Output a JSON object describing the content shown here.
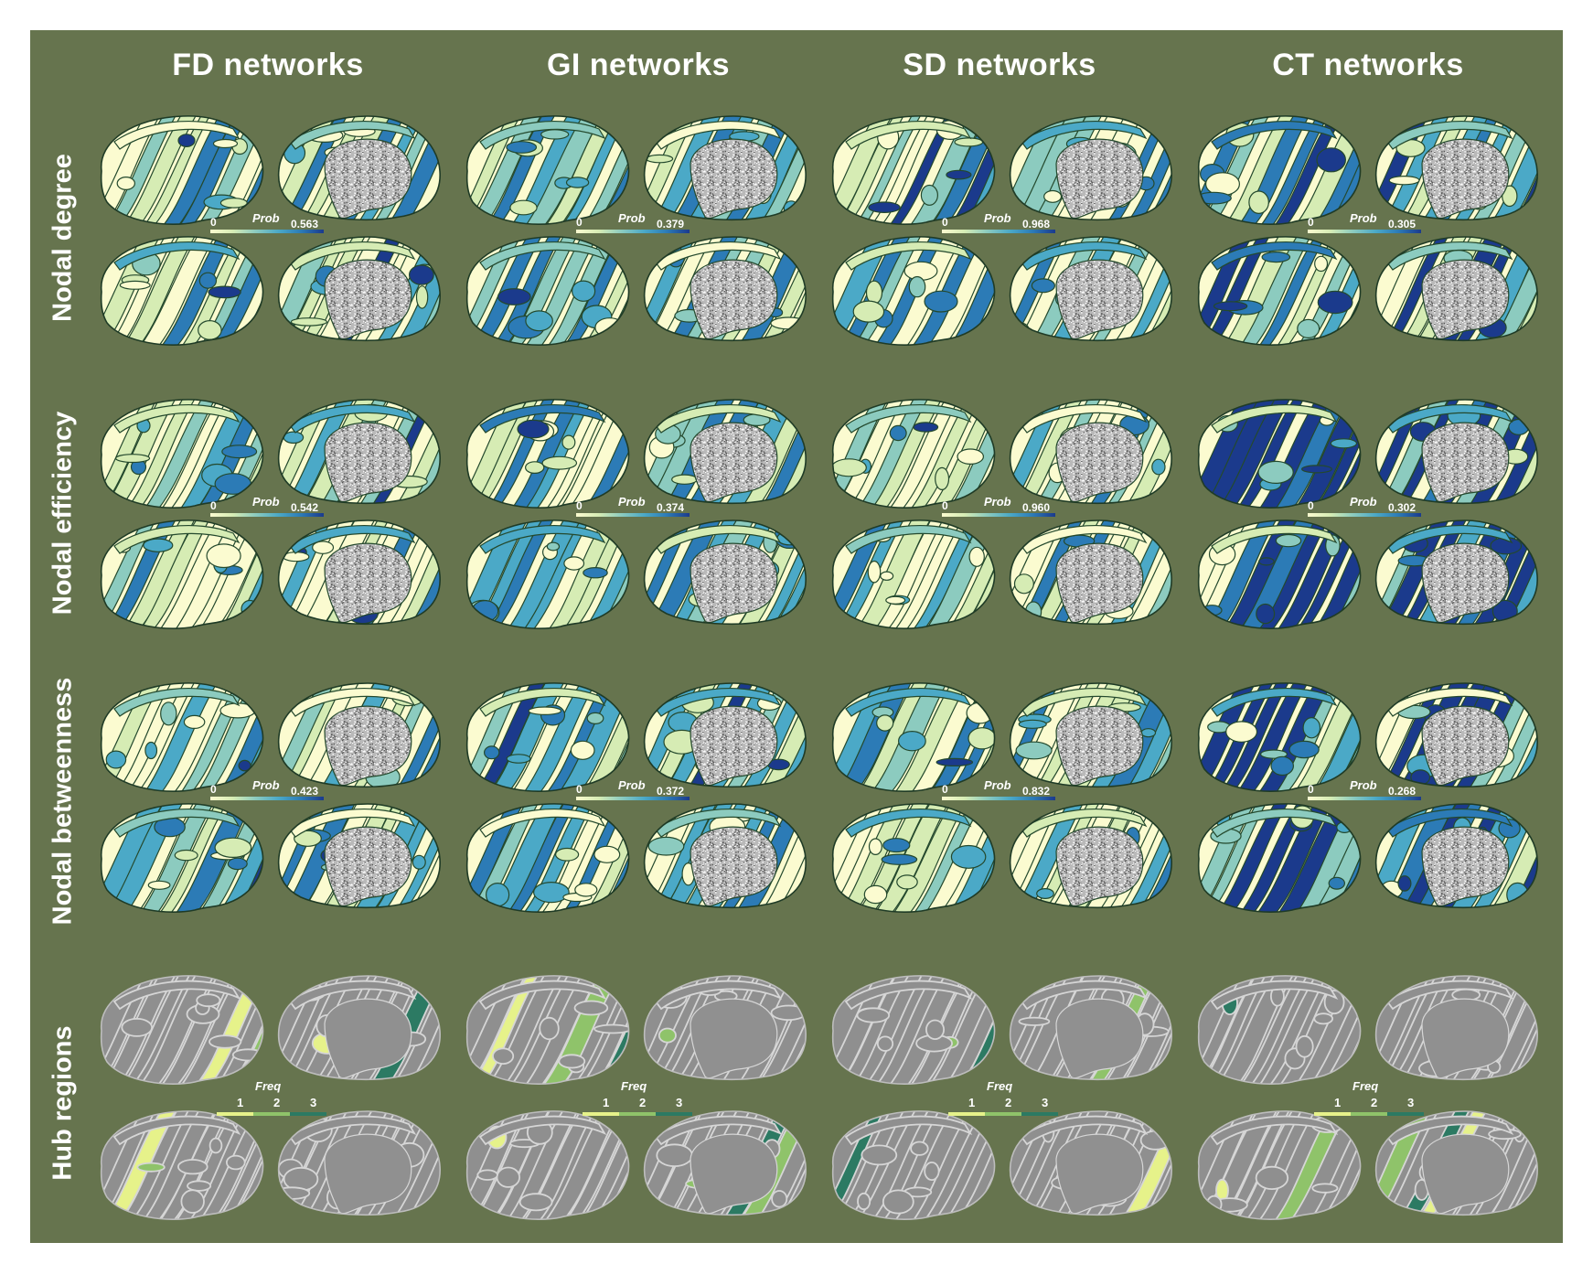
{
  "columns": [
    {
      "title": "FD networks",
      "prob_max": [
        "0.563",
        "0.542",
        "0.423"
      ]
    },
    {
      "title": "GI networks",
      "prob_max": [
        "0.379",
        "0.374",
        "0.372"
      ]
    },
    {
      "title": "SD networks",
      "prob_max": [
        "0.968",
        "0.960",
        "0.832"
      ]
    },
    {
      "title": "CT networks",
      "prob_max": [
        "0.305",
        "0.302",
        "0.268"
      ]
    }
  ],
  "rows": [
    {
      "title": "Nodal degree"
    },
    {
      "title": "Nodal efficiency"
    },
    {
      "title": "Nodal betweenness"
    },
    {
      "title": "Hub regions"
    }
  ],
  "prob_legend": {
    "label": "Prob",
    "min": "0"
  },
  "freq_legend": {
    "label": "Freq",
    "ticks": [
      "1",
      "2",
      "3"
    ]
  },
  "colors": {
    "background": "#66744e",
    "prob_scale": [
      "#fbfbd0",
      "#d6ecb4",
      "#8ccbbf",
      "#4ba9c7",
      "#2c7bb6",
      "#1b3a8c"
    ],
    "freq_scale": [
      "#e6f28a",
      "#8fc36a",
      "#2c7a63"
    ],
    "hub_base": "#8f8f8f",
    "hub_lines": "#d6d6d6",
    "medial_wall_prob": "#b9b9b9",
    "medial_wall_hub": "#909090"
  }
}
